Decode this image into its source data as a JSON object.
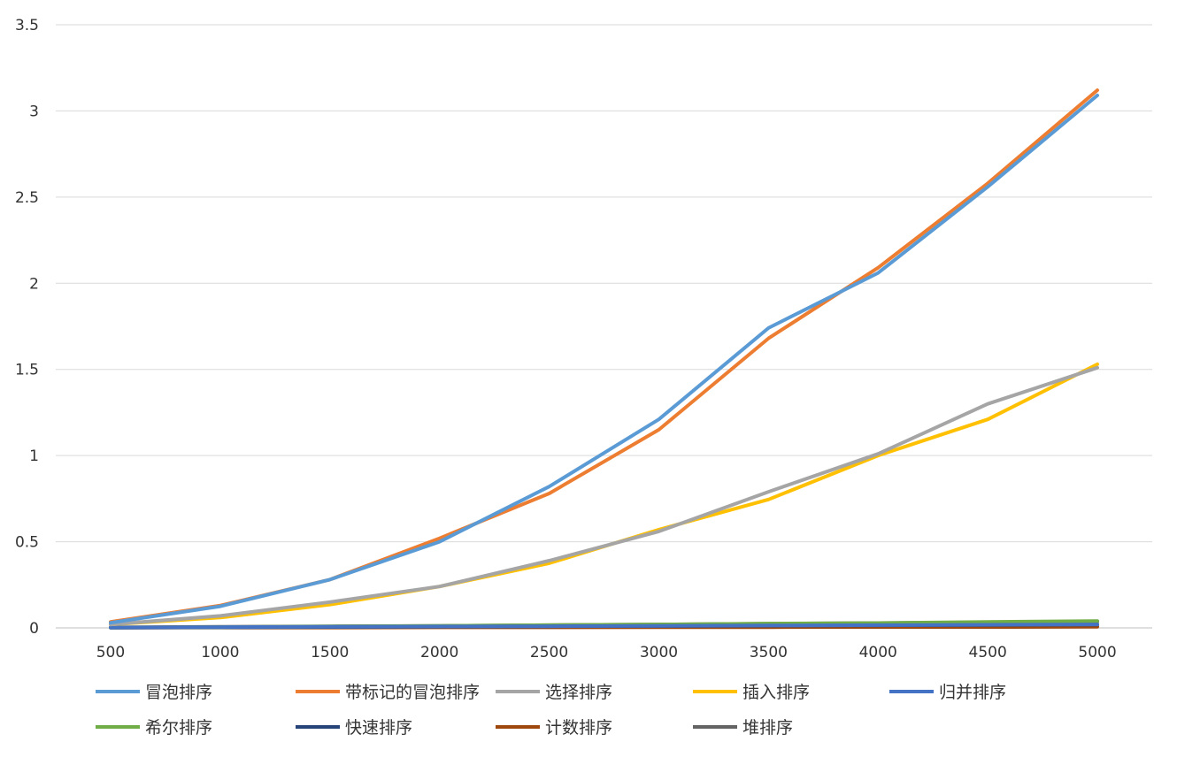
{
  "chart_data": {
    "type": "line",
    "title": "",
    "xlabel": "",
    "ylabel": "",
    "x": [
      "500",
      "1000",
      "1500",
      "2000",
      "2500",
      "3000",
      "3500",
      "4000",
      "4500",
      "5000"
    ],
    "y_ticks": [
      "0",
      "0.5",
      "1",
      "1.5",
      "2",
      "2.5",
      "3",
      "3.5"
    ],
    "ylim": [
      0,
      3.5
    ],
    "grid": "horizontal",
    "legend_position": "bottom",
    "series": [
      {
        "name": "冒泡排序",
        "color": "#5B9BD5",
        "values": [
          0.03,
          0.125,
          0.28,
          0.5,
          0.82,
          1.21,
          1.74,
          2.06,
          2.56,
          3.09
        ]
      },
      {
        "name": "带标记的冒泡排序",
        "color": "#ED7D31",
        "values": [
          0.035,
          0.13,
          0.28,
          0.52,
          0.78,
          1.15,
          1.68,
          2.09,
          2.58,
          3.12
        ]
      },
      {
        "name": "选择排序",
        "color": "#A5A5A5",
        "values": [
          0.02,
          0.07,
          0.15,
          0.24,
          0.39,
          0.56,
          0.79,
          1.01,
          1.3,
          1.51
        ]
      },
      {
        "name": "插入排序",
        "color": "#FFC000",
        "values": [
          0.02,
          0.06,
          0.135,
          0.24,
          0.375,
          0.57,
          0.745,
          1.0,
          1.21,
          1.53
        ]
      },
      {
        "name": "归并排序",
        "color": "#4472C4",
        "values": [
          0.002,
          0.004,
          0.006,
          0.008,
          0.01,
          0.012,
          0.014,
          0.016,
          0.018,
          0.02
        ]
      },
      {
        "name": "希尔排序",
        "color": "#70AD47",
        "values": [
          0.002,
          0.004,
          0.008,
          0.012,
          0.016,
          0.02,
          0.025,
          0.028,
          0.035,
          0.04
        ]
      },
      {
        "name": "快速排序",
        "color": "#264478",
        "values": [
          0.001,
          0.003,
          0.005,
          0.007,
          0.009,
          0.011,
          0.013,
          0.015,
          0.017,
          0.019
        ]
      },
      {
        "name": "计数排序",
        "color": "#9E480E",
        "values": [
          0.001,
          0.002,
          0.002,
          0.003,
          0.003,
          0.004,
          0.004,
          0.005,
          0.005,
          0.006
        ]
      },
      {
        "name": "堆排序",
        "color": "#636363",
        "values": [
          0.003,
          0.006,
          0.009,
          0.012,
          0.016,
          0.02,
          0.024,
          0.028,
          0.032,
          0.036
        ]
      }
    ]
  }
}
